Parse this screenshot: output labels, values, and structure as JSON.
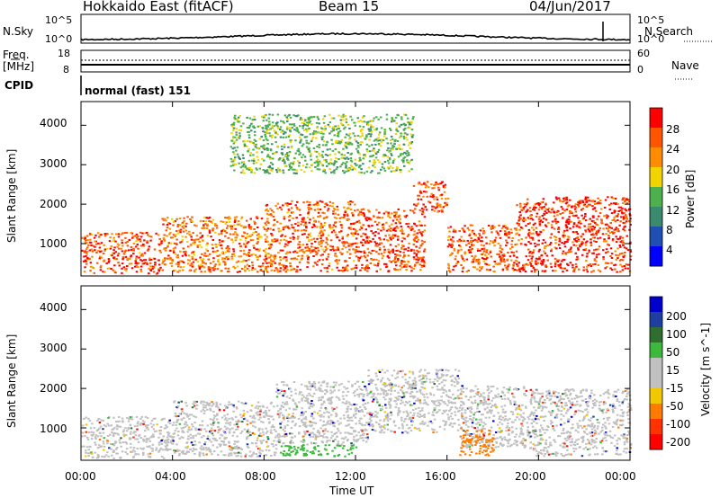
{
  "header": {
    "title": "Hokkaido East (fitACF)",
    "beam": "Beam 15",
    "date": "04/Jun/2017"
  },
  "noise_panel": {
    "left_label": "N.Sky",
    "right_label": "N.Search",
    "left_ticks": [
      "10^5",
      "10^0"
    ],
    "right_ticks": [
      "10^5",
      "10^0"
    ]
  },
  "freq_panel": {
    "label_line1": "Freq.",
    "label_line2": "[MHz]",
    "left_ticks": [
      "18",
      "8"
    ],
    "right_label": "Nave",
    "right_ticks": [
      "60",
      "0"
    ]
  },
  "cpid": {
    "label": "CPID",
    "text": "normal (fast) 151"
  },
  "colors": {
    "power_scale": [
      "#0000ff",
      "#1f4fb0",
      "#3a8a6e",
      "#4cb04c",
      "#f2d400",
      "#ff8c00",
      "#ff5500",
      "#ff0000"
    ],
    "velocity_scale": [
      "#ff0000",
      "#ff3300",
      "#ff7a00",
      "#f2c800",
      "#c0c0c0",
      "#c0c0c0",
      "#3cb83c",
      "#2e6e2e",
      "#1f3fa0",
      "#0000cc"
    ]
  },
  "chart_data": [
    {
      "type": "heatmap",
      "name": "power",
      "xlabel": "Time UT",
      "ylabel": "Slant Range [km]",
      "x_ticks": [
        "00:00",
        "04:00",
        "08:00",
        "12:00",
        "16:00",
        "20:00",
        "00:00"
      ],
      "y_ticks": [
        "4000",
        "3000",
        "2000",
        "1000"
      ],
      "xlim": [
        0,
        24
      ],
      "ylim": [
        180,
        4600
      ],
      "colorbar": {
        "label": "Power [dB]",
        "ticks": [
          "28",
          "24",
          "20",
          "16",
          "12",
          "8",
          "4"
        ],
        "range": [
          0,
          32
        ]
      },
      "regions": [
        {
          "t0": 0.0,
          "t1": 3.5,
          "r0": 250,
          "r1": 1300,
          "level": 0.82
        },
        {
          "t0": 3.5,
          "t1": 8.0,
          "r0": 300,
          "r1": 1700,
          "level": 0.75
        },
        {
          "t0": 8.0,
          "t1": 12.0,
          "r0": 300,
          "r1": 2100,
          "level": 0.8
        },
        {
          "t0": 12.0,
          "t1": 15.0,
          "r0": 300,
          "r1": 1900,
          "level": 0.85
        },
        {
          "t0": 14.5,
          "t1": 16.0,
          "r0": 1800,
          "r1": 2600,
          "level": 0.85
        },
        {
          "t0": 16.0,
          "t1": 19.0,
          "r0": 300,
          "r1": 1500,
          "level": 0.82
        },
        {
          "t0": 19.0,
          "t1": 24.0,
          "r0": 300,
          "r1": 2200,
          "level": 0.9
        },
        {
          "t0": 6.5,
          "t1": 14.5,
          "r0": 2800,
          "r1": 4300,
          "level": 0.45
        }
      ]
    },
    {
      "type": "heatmap",
      "name": "velocity",
      "xlabel": "Time UT",
      "ylabel": "Slant Range [km]",
      "x_ticks": [
        "00:00",
        "04:00",
        "08:00",
        "12:00",
        "16:00",
        "20:00",
        "00:00"
      ],
      "y_ticks": [
        "4000",
        "3000",
        "2000",
        "1000"
      ],
      "xlim": [
        0,
        24
      ],
      "ylim": [
        180,
        4600
      ],
      "colorbar": {
        "label": "Velocity [m s^-1]",
        "ticks": [
          "200",
          "100",
          "50",
          "15",
          "-15",
          "-50",
          "-100",
          "-200"
        ],
        "range": [
          -250,
          250
        ]
      },
      "regions": [
        {
          "t0": 0.0,
          "t1": 4.0,
          "r0": 250,
          "r1": 1300,
          "v": 5
        },
        {
          "t0": 4.0,
          "t1": 8.5,
          "r0": 300,
          "r1": 1700,
          "v": -5
        },
        {
          "t0": 8.5,
          "t1": 12.5,
          "r0": 600,
          "r1": 2200,
          "v": 5
        },
        {
          "t0": 12.5,
          "t1": 16.5,
          "r0": 900,
          "r1": 2500,
          "v": -5
        },
        {
          "t0": 16.5,
          "t1": 19.5,
          "r0": 500,
          "r1": 2100,
          "v": 5
        },
        {
          "t0": 19.5,
          "t1": 24.0,
          "r0": 300,
          "r1": 2000,
          "v": -5
        },
        {
          "t0": 8.5,
          "t1": 12.0,
          "r0": 300,
          "r1": 600,
          "v": 60
        },
        {
          "t0": 16.5,
          "t1": 18.0,
          "r0": 300,
          "r1": 1000,
          "v": -60
        }
      ]
    }
  ]
}
